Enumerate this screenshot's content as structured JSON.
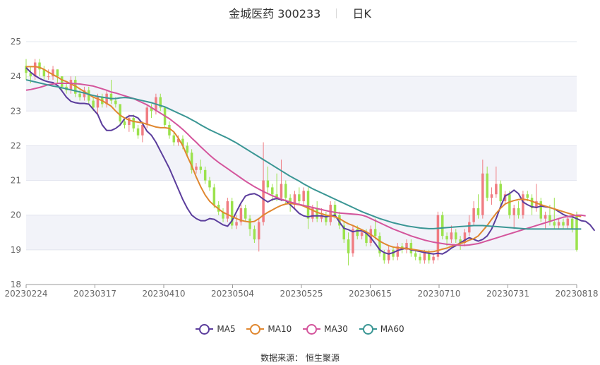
{
  "title": {
    "name": "金城医药 300233",
    "period": "日K"
  },
  "legend": [
    {
      "name": "MA5",
      "color": "#5b3d9c"
    },
    {
      "name": "MA10",
      "color": "#e0872f"
    },
    {
      "name": "MA30",
      "color": "#d4559c"
    },
    {
      "name": "MA60",
      "color": "#3a9694"
    }
  ],
  "source": "数据来源： 恒生聚源",
  "chart_data": {
    "type": "candlestick",
    "xlabel": "",
    "ylabel": "",
    "ylim": [
      18,
      25
    ],
    "yticks": [
      "18",
      "19",
      "20",
      "21",
      "22",
      "23",
      "24",
      "25"
    ],
    "xticks": [
      "20230224",
      "20230317",
      "20230410",
      "20230504",
      "20230525",
      "20230615",
      "20230710",
      "20230731",
      "20230818"
    ],
    "colors": {
      "up": "#f07c82",
      "down": "#9be24d"
    },
    "candles": [
      [
        24.3,
        24.1,
        24.5,
        23.9
      ],
      [
        24.1,
        24.0,
        24.3,
        23.8
      ],
      [
        24.0,
        24.4,
        24.5,
        23.9
      ],
      [
        24.4,
        24.2,
        24.5,
        24.0
      ],
      [
        24.2,
        24.0,
        24.3,
        23.9
      ],
      [
        24.0,
        24.0,
        24.2,
        23.9
      ],
      [
        24.0,
        24.2,
        24.3,
        23.9
      ],
      [
        24.2,
        24.0,
        24.2,
        23.8
      ],
      [
        24.0,
        23.7,
        24.0,
        23.6
      ],
      [
        23.7,
        23.6,
        23.8,
        23.5
      ],
      [
        23.6,
        23.9,
        24.0,
        23.5
      ],
      [
        23.9,
        23.5,
        24.0,
        23.4
      ],
      [
        23.5,
        23.4,
        23.6,
        23.3
      ],
      [
        23.4,
        23.6,
        23.7,
        23.3
      ],
      [
        23.6,
        23.3,
        23.7,
        23.2
      ],
      [
        23.3,
        23.1,
        23.4,
        23.0
      ],
      [
        23.1,
        23.4,
        23.5,
        22.9
      ],
      [
        23.4,
        23.2,
        23.5,
        23.1
      ],
      [
        23.2,
        23.5,
        23.6,
        23.1
      ],
      [
        23.5,
        23.3,
        23.9,
        23.2
      ],
      [
        23.3,
        23.2,
        23.4,
        23.1
      ],
      [
        23.2,
        22.7,
        23.2,
        22.6
      ],
      [
        22.7,
        22.6,
        22.8,
        22.5
      ],
      [
        22.6,
        22.8,
        22.9,
        22.4
      ],
      [
        22.8,
        22.5,
        22.9,
        22.4
      ],
      [
        22.5,
        22.3,
        22.6,
        22.2
      ],
      [
        22.3,
        22.6,
        22.7,
        22.1
      ],
      [
        22.6,
        23.1,
        23.2,
        22.5
      ],
      [
        23.1,
        23.0,
        23.2,
        22.8
      ],
      [
        23.0,
        23.4,
        23.5,
        22.9
      ],
      [
        23.4,
        23.1,
        23.5,
        23.0
      ],
      [
        23.1,
        22.6,
        23.1,
        22.5
      ],
      [
        22.6,
        22.3,
        22.7,
        22.2
      ],
      [
        22.3,
        22.1,
        22.4,
        22.0
      ],
      [
        22.1,
        22.2,
        22.3,
        22.0
      ],
      [
        22.2,
        22.0,
        22.3,
        21.9
      ],
      [
        22.0,
        21.8,
        22.1,
        21.7
      ],
      [
        21.8,
        21.3,
        21.9,
        21.2
      ],
      [
        21.3,
        21.4,
        21.5,
        21.2
      ],
      [
        21.4,
        21.3,
        21.6,
        21.2
      ],
      [
        21.3,
        21.0,
        21.4,
        20.9
      ],
      [
        21.0,
        20.8,
        21.1,
        20.7
      ],
      [
        20.8,
        20.3,
        20.9,
        20.2
      ],
      [
        20.3,
        20.1,
        20.4,
        20.0
      ],
      [
        20.1,
        19.9,
        20.2,
        19.8
      ],
      [
        19.9,
        20.4,
        20.5,
        19.8
      ],
      [
        20.4,
        19.7,
        20.5,
        19.6
      ],
      [
        19.7,
        19.8,
        20.0,
        19.6
      ],
      [
        19.8,
        20.2,
        20.3,
        19.7
      ],
      [
        20.2,
        19.9,
        20.3,
        19.8
      ],
      [
        19.9,
        19.6,
        20.0,
        19.4
      ],
      [
        19.6,
        19.3,
        19.7,
        19.2
      ],
      [
        19.3,
        19.8,
        19.9,
        18.95
      ],
      [
        19.8,
        21.0,
        22.1,
        19.7
      ],
      [
        21.0,
        20.8,
        21.4,
        20.6
      ],
      [
        20.8,
        20.6,
        20.9,
        20.4
      ],
      [
        20.6,
        20.5,
        21.2,
        20.4
      ],
      [
        20.5,
        20.9,
        21.6,
        20.4
      ],
      [
        20.9,
        20.5,
        21.0,
        20.3
      ],
      [
        20.5,
        20.3,
        20.6,
        20.1
      ],
      [
        20.3,
        20.6,
        20.7,
        20.2
      ],
      [
        20.6,
        20.4,
        20.8,
        20.3
      ],
      [
        20.4,
        20.7,
        20.8,
        20.3
      ],
      [
        20.7,
        19.9,
        20.8,
        19.6
      ],
      [
        19.9,
        20.2,
        20.3,
        19.8
      ],
      [
        20.2,
        19.9,
        20.4,
        19.8
      ],
      [
        19.9,
        20.0,
        20.2,
        19.8
      ],
      [
        20.0,
        19.8,
        20.1,
        19.7
      ],
      [
        19.8,
        20.3,
        20.4,
        19.7
      ],
      [
        20.3,
        20.0,
        20.4,
        19.9
      ],
      [
        20.0,
        19.7,
        20.1,
        19.6
      ],
      [
        19.7,
        19.3,
        19.8,
        19.2
      ],
      [
        19.3,
        18.9,
        19.5,
        18.55
      ],
      [
        18.9,
        19.6,
        19.7,
        18.8
      ],
      [
        19.6,
        19.4,
        19.7,
        19.3
      ],
      [
        19.4,
        19.5,
        19.6,
        19.3
      ],
      [
        19.5,
        19.2,
        19.6,
        19.1
      ],
      [
        19.2,
        19.6,
        19.7,
        19.1
      ],
      [
        19.6,
        19.4,
        19.9,
        19.3
      ],
      [
        19.4,
        18.9,
        19.5,
        18.8
      ],
      [
        18.9,
        18.7,
        19.0,
        18.6
      ],
      [
        18.7,
        19.0,
        19.1,
        18.6
      ],
      [
        19.0,
        18.8,
        19.1,
        18.7
      ],
      [
        18.8,
        19.1,
        19.2,
        18.7
      ],
      [
        19.1,
        19.0,
        19.2,
        18.9
      ],
      [
        19.0,
        19.2,
        19.3,
        18.9
      ],
      [
        19.2,
        18.9,
        19.3,
        18.8
      ],
      [
        18.9,
        18.8,
        19.0,
        18.7
      ],
      [
        18.8,
        18.7,
        18.9,
        18.6
      ],
      [
        18.7,
        18.9,
        19.0,
        18.6
      ],
      [
        18.9,
        18.7,
        19.0,
        18.6
      ],
      [
        18.7,
        18.8,
        18.9,
        18.6
      ],
      [
        18.8,
        20.0,
        20.1,
        18.7
      ],
      [
        20.0,
        19.4,
        20.1,
        19.3
      ],
      [
        19.4,
        19.3,
        19.5,
        19.1
      ],
      [
        19.3,
        19.5,
        19.7,
        19.2
      ],
      [
        19.5,
        19.3,
        19.6,
        19.2
      ],
      [
        19.3,
        19.2,
        19.4,
        19.0
      ],
      [
        19.2,
        19.5,
        19.6,
        19.1
      ],
      [
        19.5,
        19.8,
        20.0,
        19.4
      ],
      [
        19.8,
        20.2,
        20.4,
        19.7
      ],
      [
        20.2,
        20.0,
        20.6,
        19.9
      ],
      [
        20.0,
        21.2,
        21.6,
        19.9
      ],
      [
        21.2,
        20.5,
        21.4,
        20.4
      ],
      [
        20.5,
        20.6,
        20.8,
        20.3
      ],
      [
        20.6,
        20.9,
        21.4,
        20.5
      ],
      [
        20.9,
        20.4,
        21.0,
        20.3
      ],
      [
        20.4,
        20.6,
        20.7,
        20.3
      ],
      [
        20.6,
        20.0,
        20.7,
        19.9
      ],
      [
        20.0,
        20.2,
        20.3,
        19.6
      ],
      [
        20.2,
        20.0,
        20.4,
        19.9
      ],
      [
        20.0,
        20.6,
        20.7,
        19.9
      ],
      [
        20.6,
        20.5,
        20.7,
        20.4
      ],
      [
        20.5,
        20.2,
        20.6,
        20.0
      ],
      [
        20.2,
        20.4,
        20.9,
        20.1
      ],
      [
        20.4,
        19.9,
        20.5,
        19.8
      ],
      [
        19.9,
        20.0,
        20.1,
        19.6
      ],
      [
        20.0,
        19.8,
        20.3,
        19.7
      ],
      [
        19.8,
        19.7,
        20.5,
        19.6
      ],
      [
        19.7,
        19.8,
        19.9,
        19.6
      ],
      [
        19.8,
        19.7,
        19.9,
        19.6
      ],
      [
        19.7,
        19.9,
        20.0,
        19.6
      ],
      [
        19.9,
        19.6,
        20.0,
        19.5
      ],
      [
        20.0,
        19.0,
        20.1,
        18.95
      ]
    ],
    "series": [
      {
        "name": "MA5",
        "color": "#5b3d9c",
        "values": [
          24.25,
          24.12,
          24.02,
          23.94,
          23.88,
          23.84,
          23.82,
          23.74,
          23.58,
          23.4,
          23.28,
          23.24,
          23.22,
          23.22,
          23.2,
          23.05,
          22.9,
          22.6,
          22.44,
          22.44,
          22.5,
          22.6,
          22.78,
          22.86,
          22.86,
          22.8,
          22.64,
          22.42,
          22.3,
          22.1,
          21.85,
          21.6,
          21.35,
          21.05,
          20.75,
          20.45,
          20.2,
          20.0,
          19.9,
          19.84,
          19.84,
          19.9,
          19.88,
          19.8,
          19.72,
          19.68,
          19.84,
          20.1,
          20.35,
          20.55,
          20.6,
          20.62,
          20.56,
          20.46,
          20.38,
          20.45,
          20.48,
          20.44,
          20.42,
          20.3,
          20.18,
          20.05,
          19.98,
          19.95,
          19.98,
          19.98,
          19.98,
          19.95,
          19.98,
          20.0,
          19.8,
          19.62,
          19.58,
          19.52,
          19.55,
          19.55,
          19.48,
          19.35,
          19.18,
          19.0,
          18.92,
          18.88,
          18.92,
          18.98,
          19.02,
          19.05,
          19.0,
          18.98,
          18.95,
          18.92,
          18.9,
          18.88,
          18.9,
          18.88,
          18.95,
          19.05,
          19.12,
          19.2,
          19.28,
          19.35,
          19.3,
          19.25,
          19.3,
          19.4,
          19.6,
          19.9,
          20.25,
          20.55,
          20.62,
          20.72,
          20.62,
          20.38,
          20.3,
          20.24,
          20.22,
          20.26,
          20.24,
          20.22,
          20.18,
          20.1,
          20.02,
          19.96,
          19.95,
          19.9,
          19.84,
          19.82,
          19.72,
          19.55
        ]
      },
      {
        "name": "MA10",
        "color": "#e0872f",
        "values": [
          24.28,
          24.28,
          24.28,
          24.26,
          24.2,
          24.12,
          24.05,
          23.98,
          23.9,
          23.85,
          23.78,
          23.72,
          23.64,
          23.56,
          23.48,
          23.4,
          23.35,
          23.3,
          23.22,
          23.14,
          23.0,
          22.88,
          22.8,
          22.74,
          22.7,
          22.68,
          22.66,
          22.62,
          22.58,
          22.54,
          22.52,
          22.52,
          22.5,
          22.4,
          22.22,
          22.0,
          21.7,
          21.42,
          21.1,
          20.82,
          20.58,
          20.4,
          20.28,
          20.18,
          20.08,
          20.02,
          19.96,
          19.9,
          19.85,
          19.82,
          19.8,
          19.82,
          19.9,
          20.0,
          20.08,
          20.15,
          20.22,
          20.28,
          20.32,
          20.34,
          20.32,
          20.3,
          20.26,
          20.2,
          20.14,
          20.08,
          20.04,
          20.0,
          19.98,
          19.95,
          19.9,
          19.82,
          19.75,
          19.7,
          19.64,
          19.58,
          19.52,
          19.44,
          19.35,
          19.25,
          19.18,
          19.12,
          19.08,
          19.06,
          19.05,
          19.04,
          19.02,
          19.0,
          18.98,
          18.96,
          18.94,
          18.95,
          18.98,
          19.02,
          19.05,
          19.1,
          19.14,
          19.18,
          19.22,
          19.28,
          19.32,
          19.4,
          19.55,
          19.7,
          19.88,
          20.05,
          20.2,
          20.32,
          20.38,
          20.42,
          20.45,
          20.46,
          20.44,
          20.4,
          20.35,
          20.3,
          20.26,
          20.22,
          20.18,
          20.14,
          20.1,
          20.06,
          20.02,
          19.98,
          19.96
        ]
      },
      {
        "name": "MA30",
        "color": "#d4559c",
        "values": [
          23.6,
          23.62,
          23.65,
          23.68,
          23.72,
          23.76,
          23.78,
          23.8,
          23.8,
          23.8,
          23.8,
          23.79,
          23.78,
          23.76,
          23.74,
          23.72,
          23.68,
          23.64,
          23.6,
          23.55,
          23.52,
          23.48,
          23.44,
          23.4,
          23.36,
          23.3,
          23.24,
          23.18,
          23.1,
          23.02,
          22.94,
          22.86,
          22.78,
          22.68,
          22.58,
          22.47,
          22.35,
          22.22,
          22.1,
          21.97,
          21.85,
          21.73,
          21.62,
          21.52,
          21.43,
          21.34,
          21.25,
          21.16,
          21.07,
          20.98,
          20.9,
          20.82,
          20.75,
          20.68,
          20.62,
          20.56,
          20.51,
          20.46,
          20.42,
          20.38,
          20.34,
          20.31,
          20.28,
          20.25,
          20.22,
          20.19,
          20.16,
          20.13,
          20.1,
          20.08,
          20.06,
          20.05,
          20.04,
          20.03,
          20.02,
          20.0,
          19.96,
          19.9,
          19.84,
          19.78,
          19.72,
          19.66,
          19.6,
          19.55,
          19.5,
          19.45,
          19.4,
          19.36,
          19.32,
          19.28,
          19.25,
          19.22,
          19.2,
          19.18,
          19.16,
          19.15,
          19.14,
          19.13,
          19.13,
          19.14,
          19.16,
          19.18,
          19.22,
          19.26,
          19.3,
          19.34,
          19.38,
          19.42,
          19.46,
          19.5,
          19.54,
          19.58,
          19.62,
          19.66,
          19.7,
          19.74,
          19.78,
          19.82,
          19.86,
          19.9,
          19.94,
          19.96,
          19.98,
          20.0,
          20.0,
          19.98
        ]
      },
      {
        "name": "MA60",
        "color": "#3a9694",
        "values": [
          23.9,
          23.87,
          23.84,
          23.81,
          23.78,
          23.75,
          23.72,
          23.7,
          23.67,
          23.64,
          23.61,
          23.58,
          23.55,
          23.52,
          23.48,
          23.45,
          23.42,
          23.4,
          23.38,
          23.36,
          23.36,
          23.38,
          23.39,
          23.38,
          23.36,
          23.33,
          23.3,
          23.27,
          23.24,
          23.2,
          23.16,
          23.12,
          23.06,
          23.0,
          22.94,
          22.88,
          22.82,
          22.75,
          22.68,
          22.6,
          22.53,
          22.46,
          22.4,
          22.34,
          22.28,
          22.22,
          22.15,
          22.08,
          22.0,
          21.92,
          21.84,
          21.76,
          21.68,
          21.6,
          21.52,
          21.44,
          21.36,
          21.28,
          21.2,
          21.12,
          21.05,
          20.98,
          20.9,
          20.83,
          20.76,
          20.7,
          20.64,
          20.58,
          20.52,
          20.46,
          20.4,
          20.34,
          20.28,
          20.22,
          20.16,
          20.1,
          20.05,
          20.0,
          19.95,
          19.9,
          19.86,
          19.82,
          19.78,
          19.75,
          19.72,
          19.69,
          19.67,
          19.65,
          19.63,
          19.62,
          19.61,
          19.61,
          19.62,
          19.63,
          19.64,
          19.65,
          19.66,
          19.67,
          19.68,
          19.69,
          19.7,
          19.7,
          19.7,
          19.69,
          19.68,
          19.67,
          19.66,
          19.65,
          19.64,
          19.63,
          19.62,
          19.61,
          19.6,
          19.6,
          19.6,
          19.6,
          19.6,
          19.6,
          19.6,
          19.6,
          19.6,
          19.6,
          19.6,
          19.6,
          19.6
        ]
      }
    ]
  }
}
